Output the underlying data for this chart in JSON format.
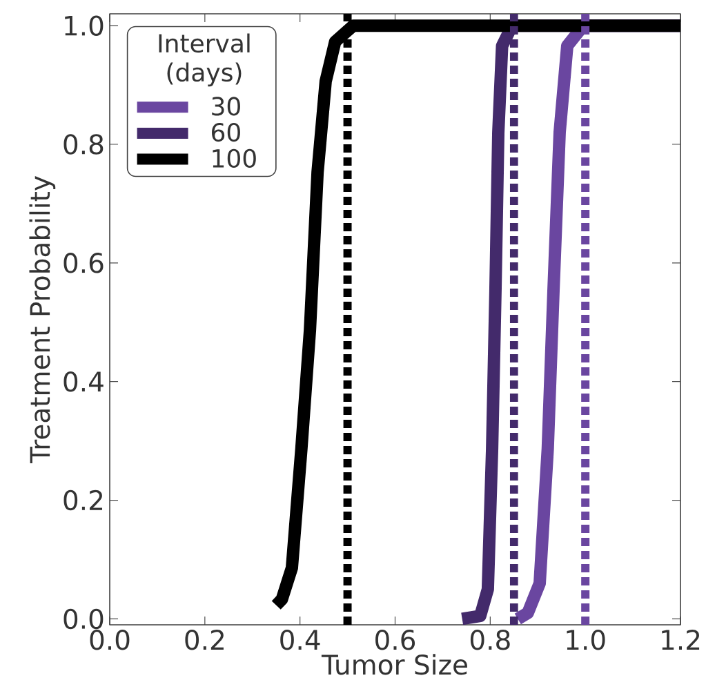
{
  "chart_data": {
    "type": "line",
    "xlabel": "Tumor Size",
    "ylabel": "Treatment Probability",
    "legend_title": "Interval (days)",
    "xlim": [
      0,
      1.2
    ],
    "ylim": [
      -0.01,
      1.02
    ],
    "xticks": [
      {
        "value": 0,
        "label": "0.0"
      },
      {
        "value": 0.2,
        "label": "0.2"
      },
      {
        "value": 0.4,
        "label": "0.4"
      },
      {
        "value": 0.6,
        "label": "0.6"
      },
      {
        "value": 0.8,
        "label": "0.8"
      },
      {
        "value": 1.0,
        "label": "1.0"
      },
      {
        "value": 1.2,
        "label": "1.2"
      }
    ],
    "yticks": [
      {
        "value": 0,
        "label": "0.0"
      },
      {
        "value": 0.2,
        "label": "0.2"
      },
      {
        "value": 0.4,
        "label": "0.4"
      },
      {
        "value": 0.6,
        "label": "0.6"
      },
      {
        "value": 0.8,
        "label": "0.8"
      },
      {
        "value": 1.0,
        "label": "1.0"
      }
    ],
    "grid": false,
    "legend": "top left",
    "marker": "none",
    "line_style": "solid",
    "series": [
      {
        "name": "30",
        "color": "#6a46a0",
        "x": [
          0.858,
          0.879,
          0.904,
          0.921,
          0.933,
          0.946,
          0.962,
          0.996,
          1.2
        ],
        "values": [
          0.0,
          0.01,
          0.06,
          0.287,
          0.553,
          0.82,
          0.966,
          1.0,
          1.0
        ]
      },
      {
        "name": "60",
        "color": "#432a6b",
        "x": [
          0.741,
          0.779,
          0.795,
          0.804,
          0.811,
          0.817,
          0.825,
          0.846,
          1.2
        ],
        "values": [
          0.0,
          0.005,
          0.05,
          0.287,
          0.553,
          0.82,
          0.966,
          1.0,
          1.0
        ]
      },
      {
        "name": "100",
        "color": "#000000",
        "x": [
          0.35,
          0.362,
          0.383,
          0.403,
          0.421,
          0.437,
          0.454,
          0.474,
          0.512,
          1.2
        ],
        "values": [
          0.023,
          0.033,
          0.086,
          0.287,
          0.487,
          0.753,
          0.906,
          0.973,
          1.0,
          1.0
        ]
      }
    ],
    "ref_lines": [
      {
        "axis": "x",
        "value": 1.0,
        "color": "#6a46a0",
        "line_style": "dotted"
      },
      {
        "axis": "x",
        "value": 0.85,
        "color": "#432a6b",
        "line_style": "dotted"
      },
      {
        "axis": "x",
        "value": 0.5,
        "color": "#000000",
        "line_style": "dotted"
      }
    ]
  }
}
